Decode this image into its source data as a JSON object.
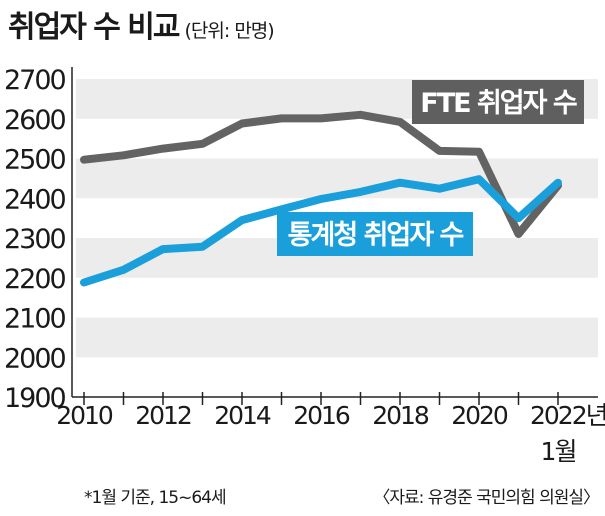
{
  "header": {
    "title": "취업자 수 비교",
    "subtitle": "(단위: 만명)"
  },
  "footer": {
    "note": "*1월 기준, 15~64세",
    "source": "〈자료: 유경준 국민의힘 의원실〉"
  },
  "colors": {
    "fte": "#636363",
    "official": "#1a9fdb",
    "fte_label_bg": "#5f5f5f",
    "official_label_bg": "#1a9fdb",
    "band": "#ececec"
  },
  "chart_data": {
    "type": "line",
    "x": [
      2010,
      2011,
      2012,
      2013,
      2014,
      2015,
      2016,
      2017,
      2018,
      2019,
      2020,
      2021,
      2022
    ],
    "x_tick_labels": [
      "2010",
      "2012",
      "2014",
      "2016",
      "2018",
      "2020",
      "2022년"
    ],
    "x_tick_sublabel": "1월",
    "ylim": [
      1900,
      2700
    ],
    "y_ticks": [
      "1900",
      "2000",
      "2100",
      "2200",
      "2300",
      "2400",
      "2500",
      "2600",
      "2700"
    ],
    "grid": "alternating horizontal bands",
    "series": [
      {
        "name": "FTE 취업자 수",
        "values": [
          2497,
          2508,
          2525,
          2537,
          2588,
          2601,
          2601,
          2610,
          2592,
          2519,
          2517,
          2310,
          2432
        ]
      },
      {
        "name": "통계청 취업자 수",
        "values": [
          2188,
          2220,
          2272,
          2278,
          2345,
          2372,
          2398,
          2416,
          2439,
          2424,
          2448,
          2350,
          2439
        ]
      }
    ]
  }
}
